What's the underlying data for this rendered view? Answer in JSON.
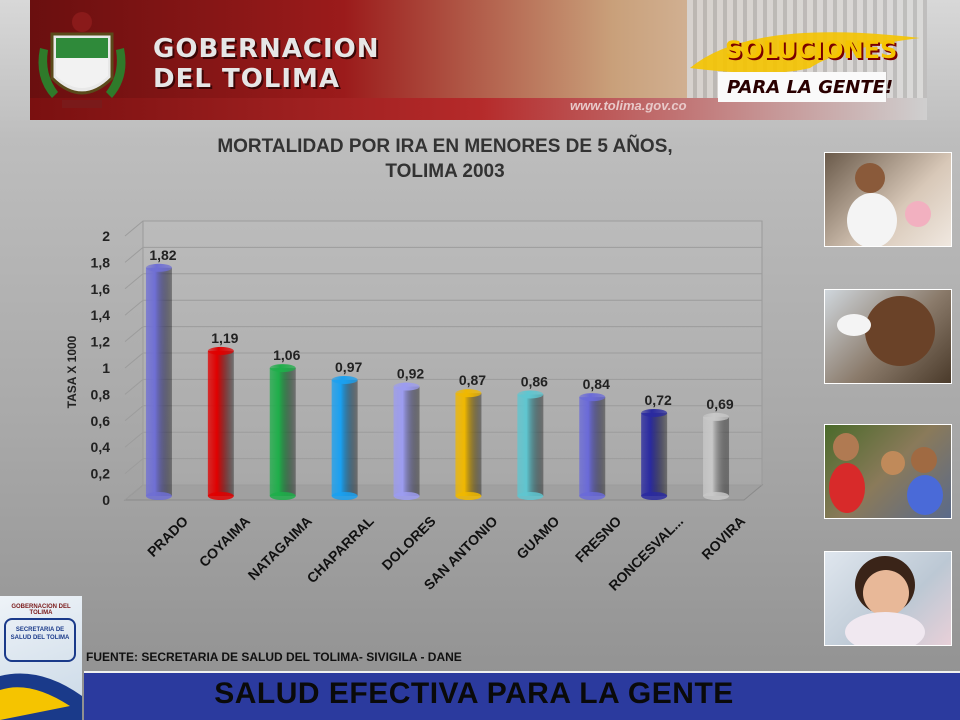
{
  "header": {
    "title_line1": "GOBERNACION",
    "title_line2": "DEL TOLIMA",
    "url": "www.tolima.gov.co",
    "slogan_line1": "SOLUCIONES",
    "slogan_line2": "PARA LA GENTE!"
  },
  "logo": {
    "top_text": "GOBERNACION DEL TOLIMA",
    "mid_text": "SECRETARIA DE SALUD DEL TOLIMA"
  },
  "source_text": "FUENTE: SECRETARIA DE SALUD DEL TOLIMA- SIVIGILA - DANE",
  "footer_text": "SALUD EFECTIVA PARA LA GENTE",
  "colors": {
    "footer_bar": "#2b3a9e",
    "banner_red": "#9b1b1b",
    "slogan_yellow": "#f5c400"
  },
  "chart_data": {
    "type": "bar",
    "title": "MORTALIDAD POR IRA EN MENORES DE 5 AÑOS, TOLIMA 2003",
    "title_line1": "MORTALIDAD POR IRA EN MENORES DE 5 AÑOS,",
    "title_line2": "TOLIMA 2003",
    "ylabel": "TASA X 1000",
    "xlabel": "",
    "ylim": [
      0,
      2
    ],
    "yticks": [
      "0",
      "0,2",
      "0,4",
      "0,6",
      "0,8",
      "1",
      "1,2",
      "1,4",
      "1,6",
      "1,8",
      "2"
    ],
    "grid": true,
    "categories": [
      "PRADO",
      "COYAIMA",
      "NATAGAIMA",
      "CHAPARRAL",
      "DOLORES",
      "SAN ANTONIO",
      "GUAMO",
      "FRESNO",
      "RONCESVAL...",
      "ROVIRA"
    ],
    "values": [
      1.82,
      1.19,
      1.06,
      0.97,
      0.92,
      0.87,
      0.86,
      0.84,
      0.72,
      0.69
    ],
    "value_labels": [
      "1,82",
      "1,19",
      "1,06",
      "0,97",
      "0,92",
      "0,87",
      "0,86",
      "0,84",
      "0,72",
      "0,69"
    ],
    "bar_colors": [
      "#6f6fd4",
      "#e00000",
      "#1fae4a",
      "#1aa0f0",
      "#9c9cf0",
      "#f0b800",
      "#5fc6d0",
      "#6a6ad8",
      "#2a2aa0",
      "#c8c8c8"
    ]
  }
}
